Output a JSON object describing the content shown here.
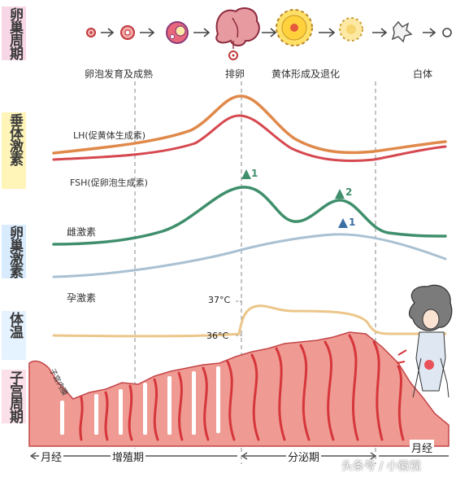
{
  "side_labels": {
    "ovarian_cycle": "卵巢周期",
    "pituitary_hormones": "垂体激素",
    "ovarian_hormones": "卵巢激素",
    "body_temp": "体温",
    "uterine_cycle": "子宫周期"
  },
  "ovary_stages": {
    "follicle": "卵泡发育及成熟",
    "ovulation": "排卵",
    "corpus_luteum": "黄体形成及退化",
    "albicans": "白体"
  },
  "hormones": {
    "lh": "LH(促黄体生成素)",
    "fsh": "FSH(促卵泡生成素)",
    "estrogen": "雌激素",
    "progesterone": "孕激素",
    "peak1": "1",
    "peak2": "2",
    "peak3": "1"
  },
  "temperature": {
    "high": "37°C",
    "low": "36°C"
  },
  "endometrium": {
    "label": "子宫内膜"
  },
  "phases": {
    "menses_start": "月经",
    "proliferative": "增殖期",
    "secretory": "分泌期",
    "menses_end": "月经"
  },
  "watermark": "头条号 / 小徽视",
  "colors": {
    "lh": "#e0894a",
    "fsh": "#d6484f",
    "estrogen": "#3f8f6c",
    "progesterone": "#a9c1d2",
    "temperature": "#ecc68a",
    "uterine_fill": "#ef9b93",
    "uterine_dark": "#d6363b"
  }
}
